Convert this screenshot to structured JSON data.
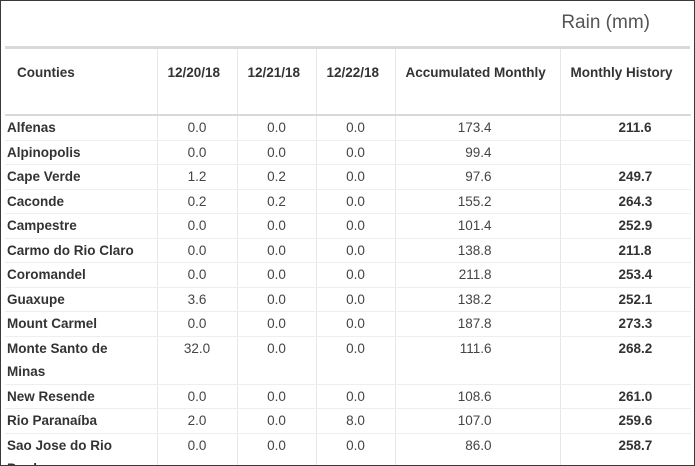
{
  "caption": "Rain (mm)",
  "headers": [
    "Counties",
    "12/20/18",
    "12/21/18",
    "12/22/18",
    "Accumulated Monthly",
    "Monthly History"
  ],
  "rows": [
    {
      "county": "Alfenas",
      "d1": "0.0",
      "d2": "0.0",
      "d3": "0.0",
      "acc": "173.4",
      "hist": "211.6"
    },
    {
      "county": "Alpinopolis",
      "d1": "0.0",
      "d2": "0.0",
      "d3": "0.0",
      "acc": "99.4",
      "hist": ""
    },
    {
      "county": "Cape Verde",
      "d1": "1.2",
      "d2": "0.2",
      "d3": "0.0",
      "acc": "97.6",
      "hist": "249.7"
    },
    {
      "county": "Caconde",
      "d1": "0.2",
      "d2": "0.2",
      "d3": "0.0",
      "acc": "155.2",
      "hist": "264.3"
    },
    {
      "county": "Campestre",
      "d1": "0.0",
      "d2": "0.0",
      "d3": "0.0",
      "acc": "101.4",
      "hist": "252.9"
    },
    {
      "county": "Carmo do Rio Claro",
      "d1": "0.0",
      "d2": "0.0",
      "d3": "0.0",
      "acc": "138.8",
      "hist": "211.8"
    },
    {
      "county": "Coromandel",
      "d1": "0.0",
      "d2": "0.0",
      "d3": "0.0",
      "acc": "211.8",
      "hist": "253.4"
    },
    {
      "county": "Guaxupe",
      "d1": "3.6",
      "d2": "0.0",
      "d3": "0.0",
      "acc": "138.2",
      "hist": "252.1"
    },
    {
      "county": "Mount Carmel",
      "d1": "0.0",
      "d2": "0.0",
      "d3": "0.0",
      "acc": "187.8",
      "hist": "273.3"
    },
    {
      "county": "Monte Santo de Minas",
      "d1": "32.0",
      "d2": "0.0",
      "d3": "0.0",
      "acc": "111.6",
      "hist": "268.2"
    },
    {
      "county": "New Resende",
      "d1": "0.0",
      "d2": "0.0",
      "d3": "0.0",
      "acc": "108.6",
      "hist": "261.0"
    },
    {
      "county": "Rio Paranaíba",
      "d1": "2.0",
      "d2": "0.0",
      "d3": "8.0",
      "acc": "107.0",
      "hist": "259.6"
    },
    {
      "county": "Sao Jose do Rio Pardo",
      "d1": "0.0",
      "d2": "0.0",
      "d3": "0.0",
      "acc": "86.0",
      "hist": "258.7"
    }
  ]
}
